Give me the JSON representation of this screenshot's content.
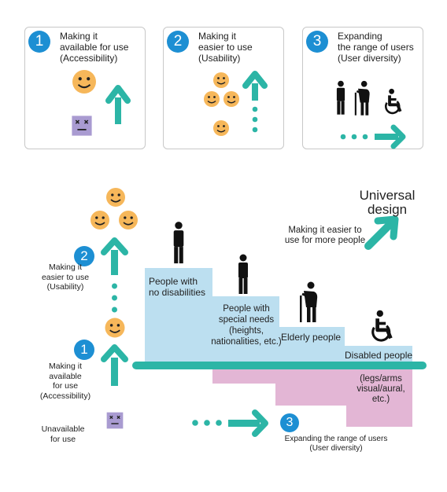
{
  "cards": [
    {
      "number": "1",
      "title": "Making it\navailable for use\n(Accessibility)"
    },
    {
      "number": "2",
      "title": "Making it\neasier to use\n(Usability)"
    },
    {
      "number": "3",
      "title": "Expanding\nthe range of users\n(User diversity)"
    }
  ],
  "left_labels": {
    "usability_number": "2",
    "usability": "Making it\neasier to use\n(Usability)",
    "accessibility_number": "1",
    "accessibility": "Making it\navailable\nfor use\n(Accessibility)",
    "unavailable": "Unavailable\nfor use"
  },
  "steps": {
    "no_disabilities": "People with\nno disabilities",
    "special_needs": "People with\nspecial needs\n(heights,\nnationalities, etc.)",
    "elderly": "Elderly people",
    "disabled": "Disabled people",
    "disabled_detail": "(legs/arms\nvisual/aural, etc.)"
  },
  "universal": {
    "title": "Universal\ndesign",
    "caption": "Making it easier to\nuse for more people"
  },
  "bottom": {
    "number": "3",
    "caption": "Expanding the range of users\n(User diversity)"
  },
  "colors": {
    "badge": "#1d8fd3",
    "teal": "#2cb5a6",
    "smiley": "#f6b75a",
    "sad_face": "#a99bd1",
    "light_blue": "#bcdff0",
    "pink": "#e3b6d5",
    "figure": "#111111"
  }
}
